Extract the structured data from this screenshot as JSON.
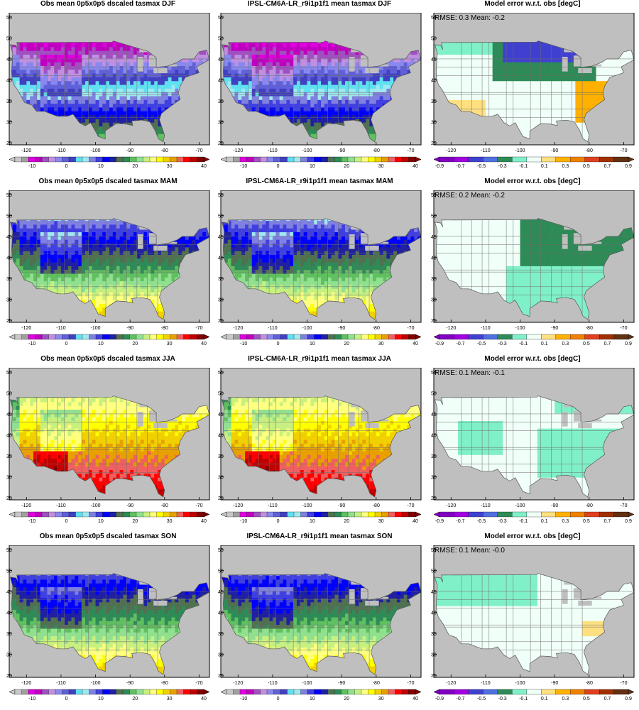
{
  "figure": {
    "columns": [
      {
        "key": "obs",
        "colorbar": "temp"
      },
      {
        "key": "model",
        "colorbar": "temp"
      },
      {
        "key": "error",
        "colorbar": "error"
      }
    ],
    "rows": [
      {
        "season": "DJF",
        "titles": [
          "Obs mean 0p5x0p5 dscaled tasmax DJF",
          "IPSL-CM6A-LR_r9i1p1f1 mean tasmax DJF",
          "Model error w.r.t. obs [degC]"
        ],
        "stats": "RMSE: 0.3  Mean: -0.2"
      },
      {
        "season": "MAM",
        "titles": [
          "Obs mean 0p5x0p5 dscaled tasmax MAM",
          "IPSL-CM6A-LR_r9i1p1f1 mean tasmax MAM",
          "Model error w.r.t. obs [degC]"
        ],
        "stats": "RMSE: 0.2  Mean: -0.2"
      },
      {
        "season": "JJA",
        "titles": [
          "Obs mean 0p5x0p5 dscaled tasmax JJA",
          "IPSL-CM6A-LR_r9i1p1f1 mean tasmax JJA",
          "Model error w.r.t. obs [degC]"
        ],
        "stats": "RMSE: 0.1  Mean: -0.1"
      },
      {
        "season": "SON",
        "titles": [
          "Obs mean 0p5x0p5 dscaled tasmax SON",
          "IPSL-CM6A-LR_r9i1p1f1 mean tasmax SON",
          "Model error w.r.t. obs [degC]"
        ],
        "stats": "RMSE: 0.1  Mean: -0.0"
      }
    ],
    "x_ticks": [
      "-120",
      "-110",
      "-100",
      "-90",
      "-80",
      "-70"
    ],
    "x_tick_values": [
      -120,
      -110,
      -100,
      -90,
      -80,
      -70
    ],
    "y_ticks": [
      "55",
      "50",
      "45",
      "40",
      "35",
      "30",
      "25"
    ],
    "y_tick_values": [
      55,
      50,
      45,
      40,
      35,
      30,
      25
    ],
    "lon_range": [
      -125,
      -67
    ],
    "lat_range": [
      24.5,
      56
    ],
    "colorbars": {
      "temp": {
        "labels": [
          "-10",
          "0",
          "10",
          "20",
          "30",
          "40"
        ],
        "label_values": [
          -10,
          0,
          10,
          20,
          30,
          40
        ],
        "range": [
          -15,
          40
        ],
        "colors": [
          "#c8c8c8",
          "#a0a0a0",
          "#e000e0",
          "#c000c0",
          "#a050c0",
          "#c090e0",
          "#8888ee",
          "#6060d8",
          "#4040c0",
          "#60e0f0",
          "#a0e8f0",
          "#8080e0",
          "#4040e0",
          "#0000ff",
          "#2020a0",
          "#507050",
          "#2e8b57",
          "#60c060",
          "#90e090",
          "#c8f080",
          "#ffff80",
          "#ffff00",
          "#f0d000",
          "#e8a000",
          "#f06060",
          "#ff0000",
          "#c00000",
          "#800000"
        ]
      },
      "error": {
        "labels": [
          "-0.9",
          "-0.7",
          "-0.5",
          "-0.3",
          "-0.1",
          "0.1",
          "0.3",
          "0.5",
          "0.7",
          "0.9"
        ],
        "label_values": [
          -0.9,
          -0.7,
          -0.5,
          -0.3,
          -0.1,
          0.1,
          0.3,
          0.5,
          0.7,
          0.9
        ],
        "range": [
          -0.9,
          0.9
        ],
        "colors": [
          "#8000c0",
          "#a000e0",
          "#4040d0",
          "#5070e0",
          "#2e8b57",
          "#80f0c8",
          "#f0fff8",
          "#ffe080",
          "#ffb000",
          "#f08000",
          "#e04020",
          "#a03000",
          "#603010"
        ]
      }
    },
    "fill_colors": {
      "land_missing": "#bfbfbf",
      "ocean": "#bfbfbf"
    }
  }
}
